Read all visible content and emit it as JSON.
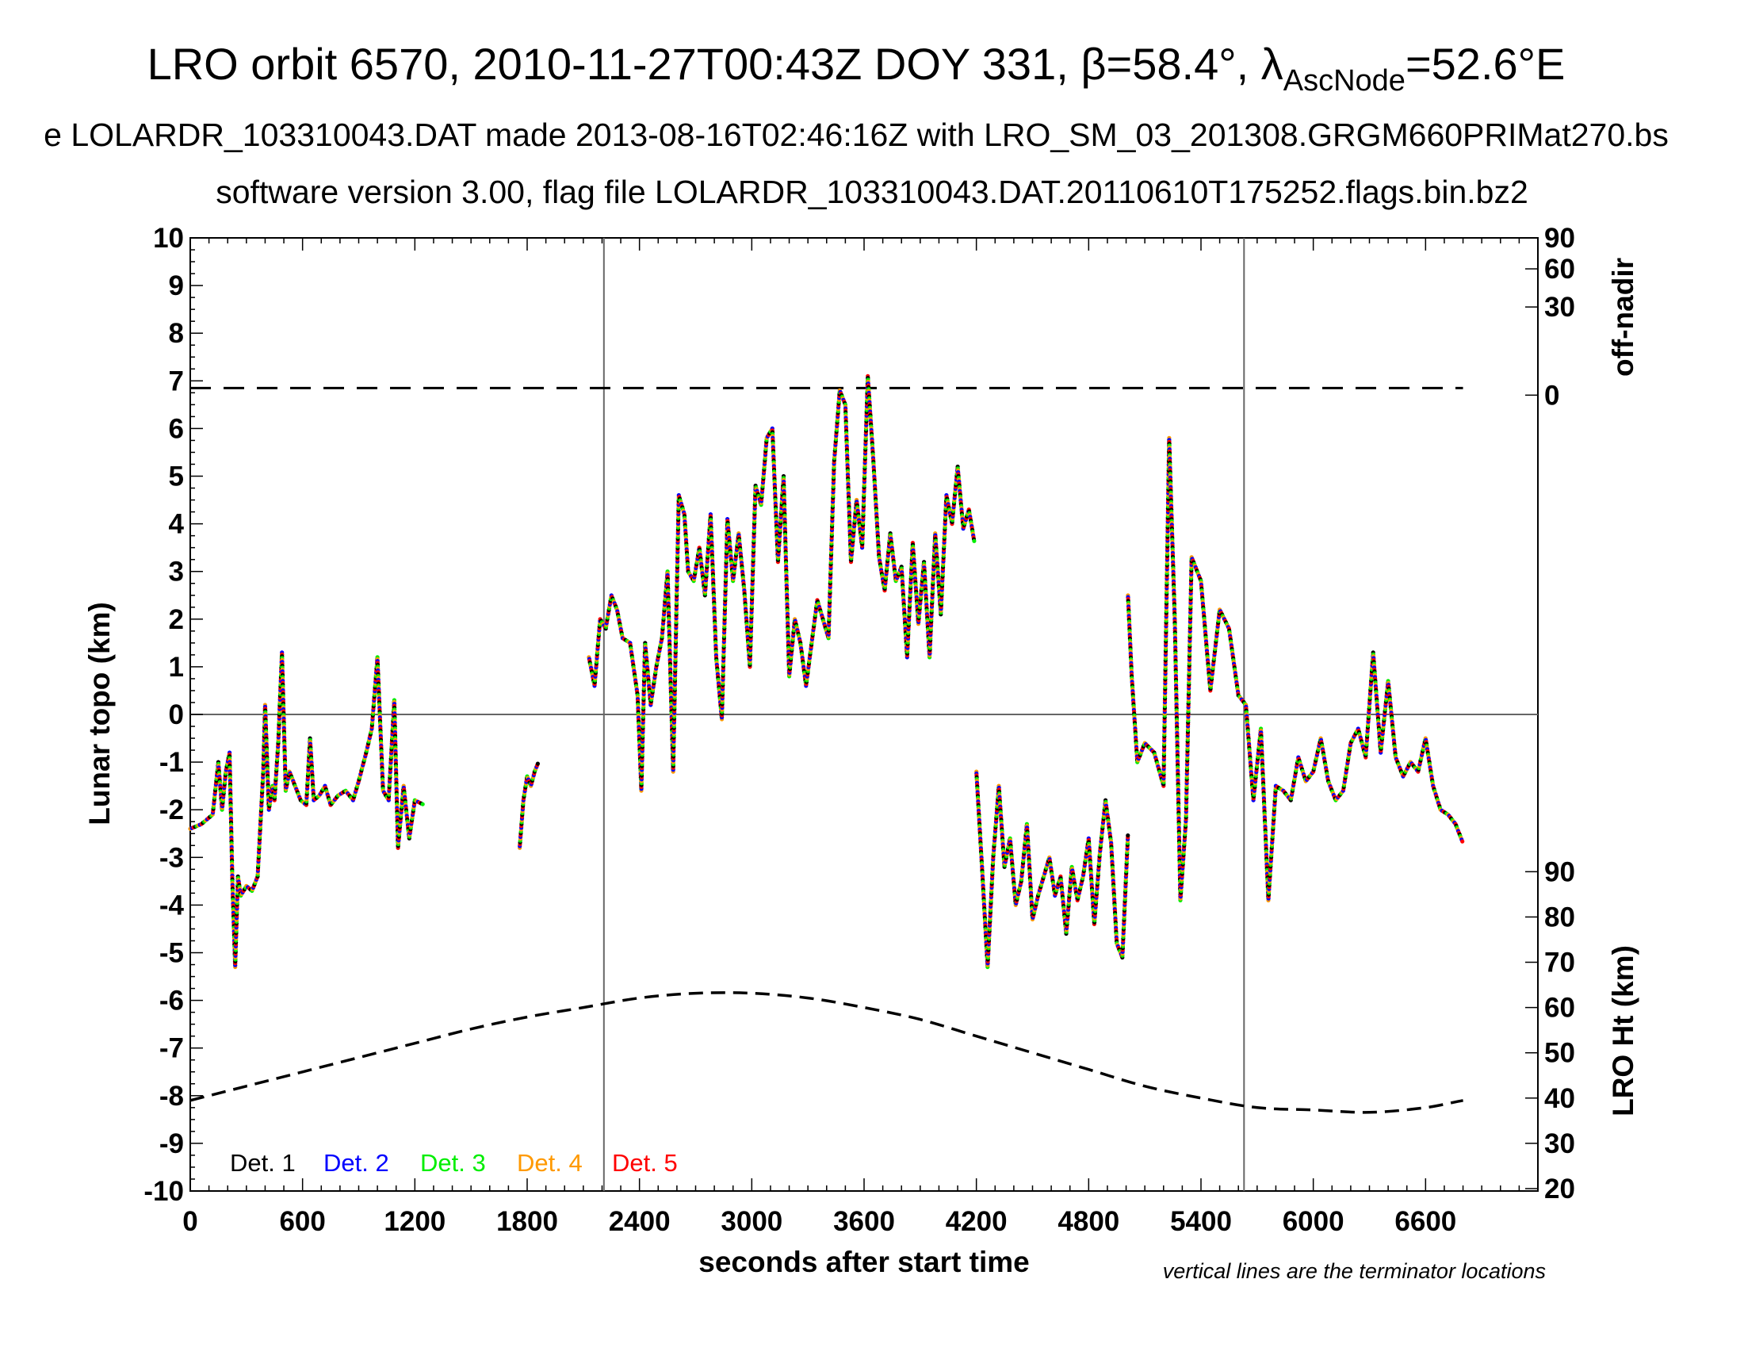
{
  "chart_data": {
    "type": "scatter",
    "title": "LRO orbit 6570, 2010-11-27T00:43Z DOY 331, β=58.4°, λ",
    "title_subscript": "AscNode",
    "title_suffix": "=52.6°E",
    "subtitle_1": "e LOLARDR_103310043.DAT made 2013-08-16T02:46:16Z with LRO_SM_03_201308.GRGM660PRIMat270.bs",
    "subtitle_2": "software version 3.00, flag file LOLARDR_103310043.DAT.20110610T175252.flags.bin.bz2",
    "xlabel": "seconds after start time",
    "ylabel": "Lunar topo (km)",
    "y2label_top": "off-nadir",
    "y2label_bottom": "LRO Ht (km)",
    "note": "vertical lines are the terminator locations",
    "xlim": [
      0,
      7200
    ],
    "ylim": [
      -10,
      10
    ],
    "x_ticks": [
      "0",
      "600",
      "1200",
      "1800",
      "2400",
      "3000",
      "3600",
      "4200",
      "4800",
      "5400",
      "6000",
      "6600"
    ],
    "y_ticks": [
      "10",
      "9",
      "8",
      "7",
      "6",
      "5",
      "4",
      "3",
      "2",
      "1",
      "0",
      "-1",
      "-2",
      "-3",
      "-4",
      "-5",
      "-6",
      "-7",
      "-8",
      "-9",
      "-10"
    ],
    "offnadir_ticks": [
      {
        "label": "90",
        "y": 10
      },
      {
        "label": "60",
        "y": 9.35
      },
      {
        "label": "30",
        "y": 8.55
      },
      {
        "label": "0",
        "y": 6.7
      }
    ],
    "height_ticks": [
      {
        "label": "90",
        "y": -3.3
      },
      {
        "label": "80",
        "y": -4.25
      },
      {
        "label": "70",
        "y": -5.2
      },
      {
        "label": "60",
        "y": -6.15
      },
      {
        "label": "50",
        "y": -7.1
      },
      {
        "label": "40",
        "y": -8.05
      },
      {
        "label": "30",
        "y": -9.0
      },
      {
        "label": "20",
        "y": -9.95
      }
    ],
    "terminator_x": [
      2210,
      5630
    ],
    "zero_line_y": 0,
    "offnadir_dashed": {
      "x": [
        0,
        6800
      ],
      "y": 6.85
    },
    "lro_height": {
      "name": "LRO Ht",
      "x": [
        0,
        300,
        600,
        900,
        1200,
        1500,
        1800,
        2100,
        2400,
        2700,
        3000,
        3300,
        3600,
        3900,
        4200,
        4500,
        4800,
        5100,
        5400,
        5700,
        6000,
        6300,
        6600,
        6800
      ],
      "y": [
        -8.1,
        -7.8,
        -7.5,
        -7.2,
        -6.9,
        -6.6,
        -6.35,
        -6.15,
        -5.95,
        -5.85,
        -5.85,
        -5.95,
        -6.15,
        -6.4,
        -6.75,
        -7.1,
        -7.45,
        -7.8,
        -8.05,
        -8.25,
        -8.3,
        -8.35,
        -8.25,
        -8.1
      ]
    },
    "legend": [
      {
        "name": "Det. 1",
        "color": "#000000"
      },
      {
        "name": "Det. 2",
        "color": "#0000ff"
      },
      {
        "name": "Det. 3",
        "color": "#00ee00"
      },
      {
        "name": "Det. 4",
        "color": "#ff9900"
      },
      {
        "name": "Det. 5",
        "color": "#ff0000"
      }
    ],
    "topo_segments": [
      {
        "x": [
          0,
          60,
          120,
          150,
          170,
          190,
          210,
          225,
          240,
          255,
          270,
          300,
          330,
          360,
          390,
          400,
          420,
          440,
          450,
          470,
          490,
          510,
          530,
          560,
          590,
          620,
          640,
          660,
          690,
          720,
          750,
          790,
          830,
          870,
          900,
          940,
          970,
          1000,
          1030,
          1060,
          1090,
          1110,
          1140,
          1170,
          1200,
          1250
        ],
        "y": [
          -2.4,
          -2.3,
          -2.1,
          -1.0,
          -2.0,
          -1.2,
          -0.8,
          -3.5,
          -5.3,
          -3.4,
          -3.8,
          -3.6,
          -3.7,
          -3.4,
          -1.2,
          0.2,
          -2.0,
          -1.5,
          -1.8,
          -0.6,
          1.3,
          -1.6,
          -1.2,
          -1.5,
          -1.8,
          -1.9,
          -0.5,
          -1.8,
          -1.7,
          -1.5,
          -1.9,
          -1.7,
          -1.6,
          -1.8,
          -1.4,
          -0.8,
          -0.3,
          1.2,
          -1.6,
          -1.8,
          0.3,
          -2.8,
          -1.5,
          -2.6,
          -1.8,
          -1.9
        ]
      },
      {
        "x": [
          1760,
          1780,
          1800,
          1820,
          1840,
          1860
        ],
        "y": [
          -2.8,
          -1.8,
          -1.3,
          -1.5,
          -1.2,
          -1.0
        ]
      },
      {
        "x": [
          2130,
          2160,
          2190,
          2220,
          2250,
          2280,
          2310,
          2350,
          2390,
          2410,
          2430,
          2460,
          2490,
          2520,
          2550,
          2580,
          2610,
          2640,
          2660,
          2690,
          2720,
          2750,
          2780,
          2810,
          2840,
          2870,
          2900,
          2930,
          2960,
          2990,
          3020,
          3050,
          3080,
          3110,
          3140,
          3170,
          3200,
          3230,
          3260,
          3290,
          3320,
          3350,
          3380,
          3410,
          3440,
          3470,
          3500,
          3530,
          3560,
          3590,
          3620,
          3650,
          3680,
          3710,
          3740,
          3770,
          3800,
          3830,
          3860,
          3890,
          3920,
          3950,
          3980,
          4010,
          4040,
          4070,
          4100,
          4130,
          4160,
          4190
        ],
        "y": [
          1.2,
          0.6,
          2.0,
          1.8,
          2.5,
          2.2,
          1.6,
          1.5,
          0.4,
          -1.6,
          1.5,
          0.2,
          1.0,
          1.6,
          3.0,
          -1.2,
          4.6,
          4.2,
          3.0,
          2.8,
          3.5,
          2.5,
          4.2,
          1.2,
          -0.1,
          4.1,
          2.8,
          3.8,
          2.6,
          1.0,
          4.8,
          4.4,
          5.8,
          6.0,
          3.2,
          5.0,
          0.8,
          2.0,
          1.5,
          0.6,
          1.5,
          2.4,
          2.0,
          1.6,
          5.3,
          6.8,
          6.5,
          3.2,
          4.5,
          3.5,
          7.1,
          5.3,
          3.3,
          2.6,
          3.8,
          2.8,
          3.1,
          1.2,
          3.6,
          1.9,
          3.2,
          1.2,
          3.8,
          2.1,
          4.6,
          4.0,
          5.2,
          3.9,
          4.3,
          3.6
        ]
      },
      {
        "x": [
          4200,
          4230,
          4260,
          4290,
          4320,
          4350,
          4380,
          4410,
          4440,
          4470,
          4500,
          4530,
          4560,
          4590,
          4620,
          4650,
          4680,
          4710,
          4740,
          4770,
          4800,
          4830,
          4860,
          4890,
          4920,
          4950,
          4980,
          5010
        ],
        "y": [
          -1.2,
          -3.2,
          -5.3,
          -3.0,
          -1.5,
          -3.2,
          -2.6,
          -4.0,
          -3.5,
          -2.3,
          -4.3,
          -3.8,
          -3.4,
          -3.0,
          -3.8,
          -3.4,
          -4.6,
          -3.2,
          -3.9,
          -3.4,
          -2.6,
          -4.4,
          -2.9,
          -1.8,
          -2.7,
          -4.8,
          -5.1,
          -2.5
        ]
      },
      {
        "x": [
          5010,
          5030,
          5060,
          5100,
          5150,
          5200,
          5230,
          5260,
          5290,
          5320,
          5350,
          5400,
          5450,
          5500,
          5550,
          5600,
          5640,
          5680,
          5720,
          5760,
          5800,
          5840,
          5880,
          5920,
          5960,
          6000,
          6040,
          6080,
          6120,
          6160,
          6200,
          6240,
          6280,
          6320,
          6360,
          6400,
          6440,
          6480,
          6520,
          6560,
          6600,
          6640,
          6680,
          6720,
          6760,
          6800
        ],
        "y": [
          2.5,
          0.8,
          -1.0,
          -0.6,
          -0.8,
          -1.5,
          5.8,
          2.0,
          -3.9,
          -2.2,
          3.3,
          2.8,
          0.5,
          2.2,
          1.8,
          0.4,
          0.2,
          -1.8,
          -0.3,
          -3.9,
          -1.5,
          -1.6,
          -1.8,
          -0.9,
          -1.4,
          -1.2,
          -0.5,
          -1.4,
          -1.8,
          -1.6,
          -0.6,
          -0.3,
          -0.9,
          1.3,
          -0.8,
          0.7,
          -0.9,
          -1.3,
          -1.0,
          -1.2,
          -0.5,
          -1.5,
          -2.0,
          -2.1,
          -2.3,
          -2.7
        ]
      }
    ]
  }
}
